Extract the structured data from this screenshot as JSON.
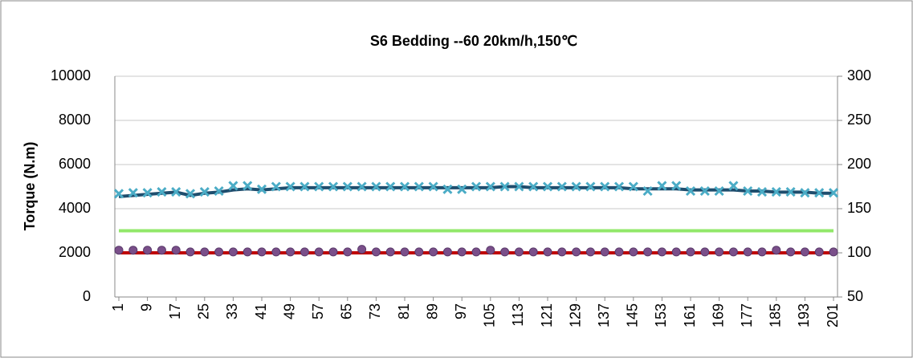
{
  "chart_data": {
    "type": "line",
    "title": "S6 Bedding --60 20km/h,150℃",
    "y_label": "Torque (N.m)",
    "x": [
      1,
      5,
      9,
      13,
      17,
      21,
      25,
      29,
      33,
      37,
      41,
      45,
      49,
      53,
      57,
      61,
      65,
      69,
      73,
      77,
      81,
      85,
      89,
      93,
      97,
      101,
      105,
      109,
      113,
      117,
      121,
      125,
      129,
      133,
      137,
      141,
      145,
      149,
      153,
      157,
      161,
      165,
      169,
      173,
      177,
      181,
      185,
      189,
      193,
      197,
      201
    ],
    "xlim": [
      1,
      201
    ],
    "xticks": [
      1,
      9,
      17,
      25,
      33,
      41,
      49,
      57,
      65,
      73,
      81,
      89,
      97,
      105,
      113,
      121,
      129,
      137,
      145,
      153,
      161,
      169,
      177,
      185,
      193,
      201
    ],
    "ylim": [
      0,
      10000
    ],
    "yticks": [
      0,
      2000,
      4000,
      6000,
      8000,
      10000
    ],
    "y2lim": [
      50,
      300
    ],
    "y2ticks": [
      50,
      100,
      150,
      200,
      250,
      300
    ],
    "grid": true,
    "series": [
      {
        "color": "#1f4e6e",
        "marker": "line",
        "values": [
          4550,
          4600,
          4650,
          4700,
          4750,
          4600,
          4700,
          4750,
          4850,
          4900,
          4850,
          4900,
          4950,
          4950,
          4950,
          4950,
          4950,
          4950,
          4950,
          4950,
          4950,
          4950,
          4950,
          4950,
          4950,
          4950,
          4950,
          5000,
          5000,
          4950,
          4950,
          4950,
          4950,
          4950,
          4950,
          4950,
          4900,
          4900,
          4900,
          4900,
          4850,
          4850,
          4850,
          4850,
          4800,
          4800,
          4750,
          4750,
          4750,
          4700,
          4700
        ]
      },
      {
        "color": "#4bacc6",
        "marker": "x",
        "axis": "y2",
        "values": [
          167,
          168,
          168,
          169,
          169,
          167,
          169,
          170,
          176,
          176,
          172,
          175,
          175,
          175,
          175,
          175,
          175,
          175,
          175,
          175,
          175,
          175,
          175,
          172,
          172,
          175,
          175,
          175,
          175,
          175,
          175,
          175,
          175,
          175,
          175,
          175,
          175,
          170,
          176,
          176,
          170,
          170,
          170,
          176,
          170,
          169,
          169,
          169,
          168,
          168,
          168
        ]
      },
      {
        "color": "#92e86a",
        "marker": "line",
        "values": [
          3000,
          3000,
          3000,
          3000,
          3000,
          3000,
          3000,
          3000,
          3000,
          3000,
          3000,
          3000,
          3000,
          3000,
          3000,
          3000,
          3000,
          3000,
          3000,
          3000,
          3000,
          3000,
          3000,
          3000,
          3000,
          3000,
          3000,
          3000,
          3000,
          3000,
          3000,
          3000,
          3000,
          3000,
          3000,
          3000,
          3000,
          3000,
          3000,
          3000,
          3000,
          3000,
          3000,
          3000,
          3000,
          3000,
          3000,
          3000,
          3000,
          3000,
          3000
        ]
      },
      {
        "color": "#c00000",
        "marker": "line",
        "values": [
          2000,
          2000,
          2000,
          2000,
          2000,
          2000,
          2000,
          2000,
          2000,
          2000,
          2000,
          2000,
          2000,
          2000,
          2000,
          2000,
          2000,
          2000,
          2000,
          2000,
          2000,
          2000,
          2000,
          2000,
          2000,
          2000,
          2000,
          2000,
          2000,
          2000,
          2000,
          2000,
          2000,
          2000,
          2000,
          2000,
          2000,
          2000,
          2000,
          2000,
          2000,
          2000,
          2000,
          2000,
          2000,
          2000,
          2000,
          2000,
          2000,
          2000,
          2000
        ]
      },
      {
        "color": "#7a4f8a",
        "marker": "circle",
        "axis": "y2",
        "values": [
          103,
          103,
          103,
          103,
          103,
          101,
          101,
          101,
          101,
          101,
          101,
          101,
          101,
          101,
          101,
          101,
          101,
          104,
          101,
          101,
          101,
          101,
          101,
          101,
          101,
          101,
          103,
          101,
          101,
          101,
          101,
          101,
          101,
          101,
          101,
          101,
          101,
          101,
          101,
          101,
          101,
          101,
          101,
          101,
          101,
          101,
          103,
          101,
          101,
          101,
          101
        ]
      }
    ]
  }
}
